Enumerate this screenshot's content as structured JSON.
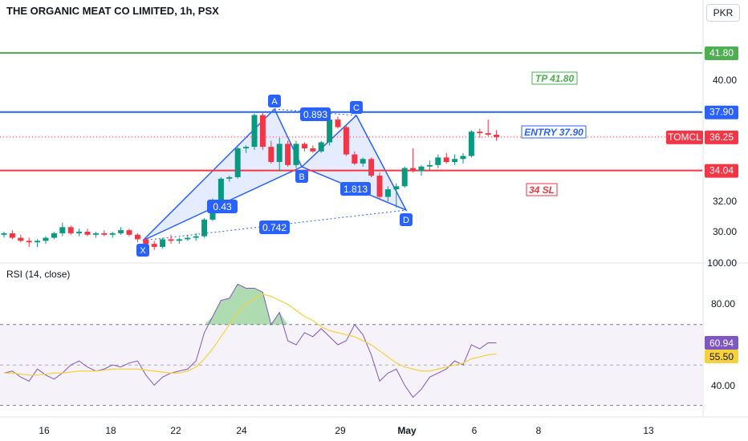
{
  "header": {
    "title": "THE ORGANIC MEAT CO LIMITED, 1h, PSX",
    "currency": "PKR"
  },
  "colors": {
    "green": "#4caf50",
    "blue": "#2962ff",
    "red": "#f23645",
    "up": "#089981",
    "down": "#f23645",
    "harmonic": "#2962ff",
    "rsi": "#7e57c2",
    "rsi_ma": "#f7d13b"
  },
  "price_scale": {
    "ticks": [
      "40.00",
      "36.25",
      "32.00",
      "30.00",
      "100.00"
    ],
    "level_labels": [
      {
        "value": "41.80",
        "color": "#4caf50"
      },
      {
        "value": "37.90",
        "color": "#2962ff"
      },
      {
        "value": "36.25",
        "color": "#f23645"
      },
      {
        "value": "34.04",
        "color": "#f23645"
      }
    ],
    "symbol_tag": "TOMCL"
  },
  "annotations": {
    "tp": "TP 41.80",
    "entry": "ENTRY 37.90",
    "sl": "34 SL"
  },
  "harmonic": {
    "points": [
      "X",
      "A",
      "B",
      "C",
      "D"
    ],
    "ratios": [
      "0.893",
      "1.813",
      "0.742",
      "0.43"
    ]
  },
  "rsi": {
    "title": "RSI (14, close)",
    "ticks": [
      "80.00",
      "40.00"
    ],
    "value": "60.94",
    "ma_value": "55.50"
  },
  "time_axis": [
    "16",
    "18",
    "22",
    "24",
    "29",
    "May",
    "6",
    "8",
    "13"
  ],
  "chart_data": {
    "type": "line",
    "price_ohlc": [
      [
        29.8,
        30.0,
        29.6,
        29.9
      ],
      [
        29.9,
        30.1,
        29.5,
        29.6
      ],
      [
        29.6,
        29.8,
        29.3,
        29.4
      ],
      [
        29.4,
        29.6,
        29.0,
        29.3
      ],
      [
        29.3,
        29.5,
        29.0,
        29.4
      ],
      [
        29.4,
        29.7,
        29.2,
        29.6
      ],
      [
        29.6,
        30.0,
        29.5,
        29.9
      ],
      [
        29.9,
        30.6,
        29.7,
        30.3
      ],
      [
        30.3,
        30.4,
        29.8,
        29.9
      ],
      [
        29.9,
        30.2,
        29.7,
        30.0
      ],
      [
        30.0,
        30.2,
        29.7,
        29.8
      ],
      [
        29.8,
        30.0,
        29.6,
        29.9
      ],
      [
        29.9,
        30.1,
        29.7,
        29.8
      ],
      [
        29.8,
        30.0,
        29.6,
        29.9
      ],
      [
        29.9,
        30.3,
        29.8,
        30.1
      ],
      [
        30.1,
        30.2,
        29.7,
        29.8
      ],
      [
        29.8,
        29.9,
        29.3,
        29.5
      ],
      [
        29.5,
        29.6,
        29.0,
        29.2
      ],
      [
        29.2,
        29.4,
        28.8,
        29.0
      ],
      [
        29.0,
        29.6,
        28.9,
        29.5
      ],
      [
        29.5,
        29.8,
        29.2,
        29.4
      ],
      [
        29.4,
        29.6,
        29.2,
        29.5
      ],
      [
        29.5,
        29.8,
        29.4,
        29.6
      ],
      [
        29.6,
        29.9,
        29.4,
        29.7
      ],
      [
        29.7,
        30.9,
        29.6,
        30.8
      ],
      [
        30.8,
        32.2,
        30.7,
        32.0
      ],
      [
        32.0,
        33.6,
        31.9,
        33.5
      ],
      [
        33.5,
        33.7,
        33.3,
        33.6
      ],
      [
        33.6,
        35.6,
        33.5,
        35.5
      ],
      [
        35.5,
        35.7,
        35.2,
        35.6
      ],
      [
        35.6,
        37.8,
        35.4,
        37.7
      ],
      [
        37.7,
        37.9,
        35.4,
        35.6
      ],
      [
        35.6,
        36.0,
        34.5,
        34.6
      ],
      [
        34.6,
        36.2,
        34.0,
        35.8
      ],
      [
        35.8,
        36.0,
        34.3,
        34.4
      ],
      [
        34.4,
        36.0,
        34.2,
        35.8
      ],
      [
        35.8,
        35.9,
        35.3,
        35.5
      ],
      [
        35.5,
        35.7,
        35.2,
        35.3
      ],
      [
        35.3,
        36.0,
        35.2,
        35.9
      ],
      [
        35.9,
        37.5,
        35.7,
        37.4
      ],
      [
        37.4,
        37.6,
        36.8,
        36.9
      ],
      [
        36.9,
        37.0,
        35.0,
        35.1
      ],
      [
        35.1,
        35.3,
        34.4,
        34.5
      ],
      [
        34.5,
        34.9,
        34.3,
        34.8
      ],
      [
        34.8,
        34.9,
        33.6,
        33.7
      ],
      [
        33.7,
        33.9,
        32.1,
        32.3
      ],
      [
        32.3,
        33.0,
        32.0,
        32.8
      ],
      [
        32.8,
        33.2,
        31.6,
        33.0
      ],
      [
        33.0,
        34.3,
        32.9,
        34.2
      ],
      [
        34.2,
        35.5,
        33.9,
        34.0
      ],
      [
        34.0,
        34.4,
        33.7,
        34.3
      ],
      [
        34.3,
        34.7,
        34.0,
        34.4
      ],
      [
        34.4,
        35.1,
        34.2,
        34.9
      ],
      [
        34.9,
        35.2,
        34.5,
        34.6
      ],
      [
        34.6,
        35.1,
        34.4,
        34.8
      ],
      [
        34.8,
        35.2,
        34.5,
        35.0
      ],
      [
        35.0,
        36.7,
        34.9,
        36.6
      ],
      [
        36.6,
        36.8,
        36.2,
        36.5
      ],
      [
        36.5,
        37.4,
        36.3,
        36.4
      ],
      [
        36.4,
        36.7,
        36.0,
        36.25
      ]
    ],
    "levels": {
      "tp": 41.8,
      "entry": 37.9,
      "sl": 34.04,
      "last": 36.25
    },
    "ylim": [
      28.5,
      44.5
    ],
    "rsi_values": [
      46,
      47,
      44,
      42,
      48,
      45,
      43,
      46,
      50,
      52,
      49,
      47,
      48,
      50,
      49,
      51,
      52,
      45,
      40,
      44,
      46,
      47,
      48,
      52,
      66,
      74,
      82,
      83,
      90,
      88,
      88,
      86,
      70,
      76,
      62,
      60,
      66,
      64,
      68,
      64,
      60,
      62,
      70,
      65,
      55,
      42,
      46,
      48,
      40,
      34,
      38,
      44,
      46,
      48,
      52,
      50,
      60,
      58,
      61,
      60.94
    ],
    "rsi_ma_values": [
      46,
      46,
      45.5,
      45,
      45,
      45.5,
      46,
      46,
      46.5,
      47,
      47,
      47,
      47.5,
      48,
      48,
      48,
      48,
      47.5,
      47,
      46.5,
      46,
      46,
      47,
      49,
      53,
      58,
      64,
      70,
      76,
      80,
      83,
      85,
      84,
      82,
      80,
      77,
      74,
      72,
      69,
      67,
      66,
      65,
      64,
      62,
      60,
      57,
      54,
      51,
      49,
      48,
      47,
      47,
      48,
      49,
      50,
      51,
      53,
      54,
      55,
      55.5
    ],
    "rsi_ylim": [
      20,
      100
    ],
    "rsi_band": [
      30,
      70
    ]
  }
}
